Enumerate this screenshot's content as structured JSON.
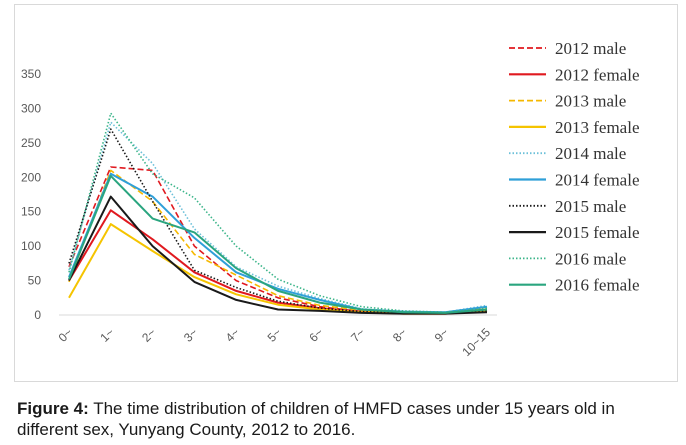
{
  "chart_data": {
    "type": "line",
    "categories": [
      "0~",
      "1~",
      "2~",
      "3~",
      "4~",
      "5~",
      "6~",
      "7~",
      "8~",
      "9~",
      "10~15"
    ],
    "ylim": [
      0,
      350
    ],
    "yticks": [
      0,
      50,
      100,
      150,
      200,
      250,
      300,
      350
    ],
    "grid": false,
    "legend_position": "right",
    "series": [
      {
        "name": "2012 male",
        "color": "#e0191f",
        "style": "dashed",
        "values": [
          70,
          215,
          210,
          100,
          50,
          25,
          12,
          5,
          3,
          2,
          8
        ]
      },
      {
        "name": "2012 female",
        "color": "#e0191f",
        "style": "solid",
        "values": [
          50,
          152,
          110,
          62,
          35,
          18,
          10,
          5,
          2,
          2,
          6
        ]
      },
      {
        "name": "2013 male",
        "color": "#f5b800",
        "style": "dashed",
        "values": [
          48,
          210,
          165,
          88,
          58,
          28,
          14,
          7,
          4,
          3,
          9
        ]
      },
      {
        "name": "2013 female",
        "color": "#f5c400",
        "style": "solid",
        "values": [
          25,
          132,
          93,
          55,
          30,
          15,
          8,
          4,
          2,
          2,
          6
        ]
      },
      {
        "name": "2014 male",
        "color": "#6cc0d9",
        "style": "dotted",
        "values": [
          65,
          280,
          220,
          125,
          70,
          42,
          24,
          9,
          5,
          4,
          14
        ]
      },
      {
        "name": "2014 female",
        "color": "#2f9fd8",
        "style": "solid",
        "values": [
          55,
          205,
          172,
          112,
          62,
          38,
          22,
          8,
          5,
          4,
          12
        ]
      },
      {
        "name": "2015 male",
        "color": "#1a1a1a",
        "style": "dotted",
        "values": [
          75,
          270,
          165,
          65,
          40,
          20,
          10,
          5,
          3,
          2,
          6
        ]
      },
      {
        "name": "2015 female",
        "color": "#1a1a1a",
        "style": "solid",
        "values": [
          50,
          172,
          100,
          48,
          22,
          8,
          6,
          3,
          2,
          2,
          4
        ]
      },
      {
        "name": "2016 male",
        "color": "#3cb58a",
        "style": "dotted",
        "values": [
          62,
          293,
          205,
          170,
          100,
          52,
          28,
          12,
          6,
          4,
          10
        ]
      },
      {
        "name": "2016 female",
        "color": "#2aa57f",
        "style": "solid",
        "values": [
          52,
          202,
          140,
          120,
          68,
          35,
          18,
          8,
          4,
          3,
          8
        ]
      }
    ]
  },
  "caption": {
    "label": "Figure 4:",
    "text": " The time distribution of children of HMFD cases under 15 years old in different sex, Yunyang County, 2012 to 2016."
  }
}
